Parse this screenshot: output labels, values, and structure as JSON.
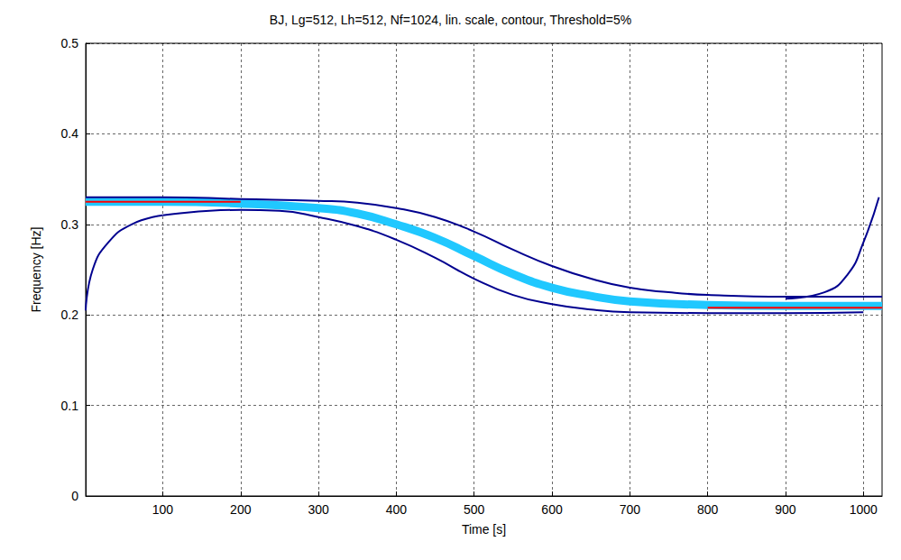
{
  "chart_data": {
    "type": "contour",
    "title": "BJ, Lg=512, Lh=512, Nf=1024, lin. scale, contour, Threshold=5%",
    "x_label": "Time [s]",
    "y_label": "Frequency [Hz]",
    "xlim": [
      1,
      1024
    ],
    "xticks": [
      100,
      200,
      300,
      400,
      500,
      600,
      700,
      800,
      900,
      1000
    ],
    "ylim": [
      0,
      0.5
    ],
    "yticks": [
      0,
      0.1,
      0.2,
      0.3,
      0.4,
      0.5
    ],
    "grid": true,
    "series": [
      {
        "color": "#20c8ff",
        "line_style": "band",
        "x": [
          1,
          100,
          200,
          300,
          350,
          400,
          450,
          500,
          550,
          600,
          650,
          700,
          800,
          900,
          1024
        ],
        "values": [
          0.325,
          0.325,
          0.323,
          0.318,
          0.312,
          0.3,
          0.285,
          0.265,
          0.245,
          0.23,
          0.221,
          0.215,
          0.211,
          0.21,
          0.21
        ]
      },
      {
        "color": "#00008f",
        "line_style": "solid",
        "x": [
          1,
          100,
          200,
          300,
          350,
          400,
          450,
          500,
          550,
          600,
          650,
          700,
          750,
          800,
          900,
          1024
        ],
        "values": [
          0.33,
          0.33,
          0.328,
          0.326,
          0.324,
          0.318,
          0.308,
          0.292,
          0.272,
          0.254,
          0.24,
          0.23,
          0.225,
          0.222,
          0.22,
          0.22
        ]
      },
      {
        "color": "#00008f",
        "line_style": "solid",
        "x": [
          100,
          200,
          250,
          300,
          350,
          400,
          450,
          500,
          550,
          600,
          650,
          700,
          800,
          900,
          1000
        ],
        "values": [
          0.31,
          0.316,
          0.315,
          0.308,
          0.298,
          0.283,
          0.263,
          0.24,
          0.222,
          0.212,
          0.206,
          0.203,
          0.202,
          0.202,
          0.203
        ]
      },
      {
        "color": "#00008f",
        "line_style": "solid",
        "x": [
          1,
          10,
          30,
          60,
          100
        ],
        "values": [
          0.205,
          0.25,
          0.28,
          0.3,
          0.31
        ]
      },
      {
        "color": "#00008f",
        "line_style": "solid",
        "x": [
          900,
          950,
          980,
          1000,
          1020
        ],
        "values": [
          0.218,
          0.225,
          0.245,
          0.28,
          0.33
        ]
      },
      {
        "color": "#ff0000",
        "line_style": "solid",
        "x": [
          1,
          200
        ],
        "values": [
          0.325,
          0.325
        ]
      },
      {
        "color": "#ff0000",
        "line_style": "solid",
        "x": [
          800,
          1024
        ],
        "values": [
          0.208,
          0.208
        ]
      }
    ]
  }
}
